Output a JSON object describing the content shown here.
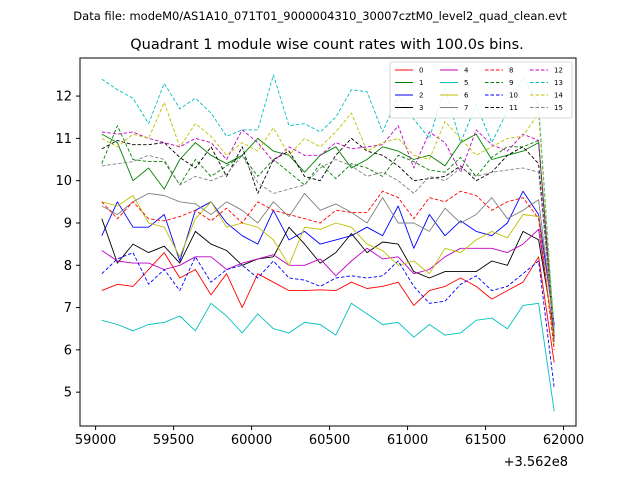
{
  "file_caption": "Data file: modeM0/AS1A10_071T01_9000004310_30007cztM0_level2_quad_clean.evt",
  "chart_data": {
    "type": "line",
    "title": "Quadrant 1 module wise count rates with 100.0s bins.",
    "xlabel": "",
    "ylabel": "",
    "x_offset_label": "+3.562e8",
    "xlim": [
      58900,
      62080
    ],
    "ylim": [
      4.2,
      12.9
    ],
    "xticks": [
      59000,
      59500,
      60000,
      60500,
      61000,
      61500,
      62000
    ],
    "yticks": [
      5,
      6,
      7,
      8,
      9,
      10,
      11,
      12
    ],
    "legend_position": "top-right",
    "x": [
      59040,
      59140,
      59240,
      59340,
      59440,
      59540,
      59640,
      59740,
      59840,
      59940,
      60040,
      60140,
      60240,
      60340,
      60440,
      60540,
      60640,
      60740,
      60840,
      60940,
      61040,
      61140,
      61240,
      61340,
      61440,
      61540,
      61640,
      61740,
      61840,
      61940
    ],
    "series": [
      {
        "name": "0",
        "color": "#ff0000",
        "dash": "solid",
        "values": [
          7.4,
          7.55,
          7.5,
          7.9,
          8.3,
          7.7,
          7.9,
          7.3,
          7.8,
          7.0,
          7.8,
          7.6,
          7.4,
          7.4,
          7.42,
          7.4,
          7.6,
          7.45,
          7.5,
          7.6,
          7.05,
          7.4,
          7.5,
          7.7,
          7.5,
          7.2,
          7.4,
          7.6,
          8.2,
          5.7
        ]
      },
      {
        "name": "1",
        "color": "#008000",
        "dash": "solid",
        "values": [
          11.1,
          10.9,
          10.0,
          10.3,
          9.8,
          10.5,
          10.9,
          10.6,
          10.4,
          10.6,
          11.0,
          10.7,
          10.6,
          10.2,
          10.6,
          10.8,
          10.3,
          10.5,
          10.8,
          10.7,
          10.5,
          10.6,
          10.35,
          10.9,
          11.1,
          10.5,
          10.6,
          10.7,
          10.9,
          6.5
        ]
      },
      {
        "name": "2",
        "color": "#0000ff",
        "dash": "solid",
        "values": [
          8.7,
          9.5,
          8.9,
          8.9,
          9.2,
          8.1,
          9.3,
          9.5,
          9.0,
          8.7,
          8.5,
          9.3,
          8.6,
          8.8,
          8.5,
          8.6,
          8.7,
          8.9,
          8.7,
          9.4,
          8.4,
          9.2,
          8.7,
          9.05,
          8.8,
          8.7,
          9.0,
          9.75,
          9.2,
          6.6
        ]
      },
      {
        "name": "3",
        "color": "#000000",
        "dash": "solid",
        "values": [
          9.1,
          8.05,
          8.5,
          8.3,
          8.45,
          8.05,
          8.8,
          8.5,
          8.35,
          8.0,
          8.15,
          8.2,
          8.9,
          8.5,
          8.05,
          8.3,
          8.75,
          8.3,
          8.55,
          8.5,
          7.85,
          7.7,
          7.85,
          7.85,
          7.85,
          8.1,
          8.0,
          8.8,
          8.6,
          6.4
        ]
      },
      {
        "name": "4",
        "color": "#bf00bf",
        "dash": "solid",
        "values": [
          8.35,
          8.1,
          8.05,
          8.05,
          7.9,
          8.0,
          8.2,
          8.2,
          7.9,
          8.05,
          8.15,
          8.25,
          8.0,
          8.0,
          8.15,
          7.75,
          8.1,
          8.4,
          8.15,
          8.2,
          7.8,
          7.9,
          8.2,
          8.4,
          8.4,
          8.4,
          8.3,
          8.5,
          8.85,
          6.3
        ]
      },
      {
        "name": "5",
        "color": "#00bfbf",
        "dash": "solid",
        "values": [
          6.7,
          6.6,
          6.45,
          6.6,
          6.65,
          6.8,
          6.45,
          7.1,
          6.8,
          6.4,
          6.85,
          6.5,
          6.4,
          6.65,
          6.6,
          6.35,
          7.1,
          6.85,
          6.6,
          6.65,
          6.3,
          6.6,
          6.35,
          6.4,
          6.7,
          6.75,
          6.5,
          7.05,
          7.1,
          4.55
        ]
      },
      {
        "name": "6",
        "color": "#bfbf00",
        "dash": "solid",
        "values": [
          9.5,
          9.4,
          9.65,
          9.0,
          8.9,
          8.2,
          9.1,
          9.5,
          8.9,
          9.0,
          8.9,
          8.6,
          8.0,
          8.9,
          8.85,
          9.0,
          8.9,
          8.5,
          8.35,
          8.0,
          8.1,
          7.8,
          8.4,
          8.3,
          8.6,
          8.8,
          8.65,
          9.2,
          9.15,
          6.1
        ]
      },
      {
        "name": "7",
        "color": "#808080",
        "dash": "solid",
        "values": [
          9.4,
          9.2,
          9.5,
          9.7,
          9.65,
          9.5,
          9.45,
          9.2,
          9.5,
          9.3,
          9.0,
          9.5,
          9.15,
          9.7,
          9.3,
          9.45,
          9.25,
          9.0,
          9.6,
          9.0,
          9.0,
          8.8,
          9.35,
          9.0,
          9.2,
          9.6,
          9.1,
          9.3,
          9.55,
          6.5
        ]
      },
      {
        "name": "8",
        "color": "#ff0000",
        "dash": "dashed",
        "values": [
          9.5,
          9.1,
          9.5,
          9.1,
          9.05,
          9.15,
          9.3,
          9.05,
          9.35,
          9.0,
          9.5,
          9.3,
          9.2,
          9.1,
          9.0,
          9.3,
          9.25,
          9.25,
          9.75,
          9.6,
          9.1,
          9.6,
          9.5,
          9.75,
          9.65,
          9.3,
          9.5,
          9.6,
          9.1,
          6.0
        ]
      },
      {
        "name": "9",
        "color": "#008000",
        "dash": "dashed",
        "values": [
          10.4,
          11.3,
          10.5,
          10.45,
          10.45,
          9.9,
          10.5,
          10.1,
          10.35,
          10.6,
          10.1,
          10.5,
          10.2,
          9.9,
          10.4,
          10.05,
          10.4,
          10.3,
          10.1,
          10.6,
          10.45,
          10.25,
          10.2,
          10.55,
          10.1,
          10.55,
          10.8,
          10.8,
          10.95,
          6.2
        ]
      },
      {
        "name": "10",
        "color": "#0000ff",
        "dash": "dashed",
        "values": [
          7.8,
          8.15,
          8.3,
          7.55,
          7.9,
          7.4,
          8.2,
          7.6,
          7.9,
          8.0,
          7.7,
          8.1,
          7.7,
          7.65,
          7.5,
          7.7,
          7.75,
          7.7,
          7.75,
          8.1,
          7.5,
          7.1,
          7.15,
          7.55,
          7.75,
          7.4,
          7.5,
          7.8,
          8.1,
          5.1
        ]
      },
      {
        "name": "11",
        "color": "#000000",
        "dash": "dashed",
        "values": [
          10.75,
          10.95,
          10.85,
          10.85,
          10.9,
          10.55,
          10.3,
          10.8,
          10.1,
          10.8,
          9.7,
          10.5,
          10.7,
          10.1,
          10.0,
          10.6,
          11.0,
          10.7,
          10.6,
          10.35,
          10.0,
          10.05,
          10.1,
          10.35,
          10.0,
          10.2,
          10.6,
          10.8,
          10.4,
          6.3
        ]
      },
      {
        "name": "12",
        "color": "#bf00bf",
        "dash": "dashed",
        "values": [
          11.15,
          11.1,
          11.15,
          11.0,
          10.9,
          10.8,
          11.0,
          10.9,
          10.5,
          11.2,
          10.9,
          10.45,
          10.8,
          10.6,
          10.6,
          10.9,
          10.75,
          10.8,
          10.85,
          11.3,
          10.3,
          11.15,
          10.9,
          10.2,
          11.2,
          10.85,
          10.7,
          11.1,
          10.95,
          6.2
        ]
      },
      {
        "name": "13",
        "color": "#00bfbf",
        "dash": "dashed",
        "values": [
          12.4,
          12.15,
          11.95,
          11.35,
          12.3,
          11.7,
          11.95,
          11.6,
          11.05,
          11.2,
          11.2,
          12.5,
          11.3,
          11.35,
          11.15,
          11.5,
          12.15,
          12.1,
          11.15,
          12.0,
          11.45,
          11.0,
          12.2,
          10.9,
          11.8,
          10.9,
          11.65,
          12.45,
          11.8,
          6.4
        ]
      },
      {
        "name": "14",
        "color": "#bfbf00",
        "dash": "dashed",
        "values": [
          11.0,
          10.8,
          11.1,
          11.0,
          11.85,
          10.8,
          11.35,
          11.05,
          10.6,
          10.9,
          10.7,
          11.25,
          10.6,
          11.0,
          10.8,
          11.15,
          11.6,
          10.7,
          10.9,
          11.0,
          10.6,
          10.5,
          11.4,
          11.0,
          10.6,
          10.8,
          11.0,
          11.05,
          11.6,
          6.3
        ]
      },
      {
        "name": "15",
        "color": "#808080",
        "dash": "dashed",
        "values": [
          10.35,
          10.4,
          10.45,
          10.6,
          10.5,
          9.9,
          10.1,
          10.0,
          10.15,
          10.6,
          9.95,
          9.7,
          9.8,
          9.9,
          10.3,
          10.5,
          10.35,
          10.1,
          10.2,
          10.0,
          9.7,
          10.1,
          10.0,
          10.3,
          10.1,
          10.2,
          10.25,
          10.3,
          10.2,
          6.4
        ]
      }
    ]
  }
}
